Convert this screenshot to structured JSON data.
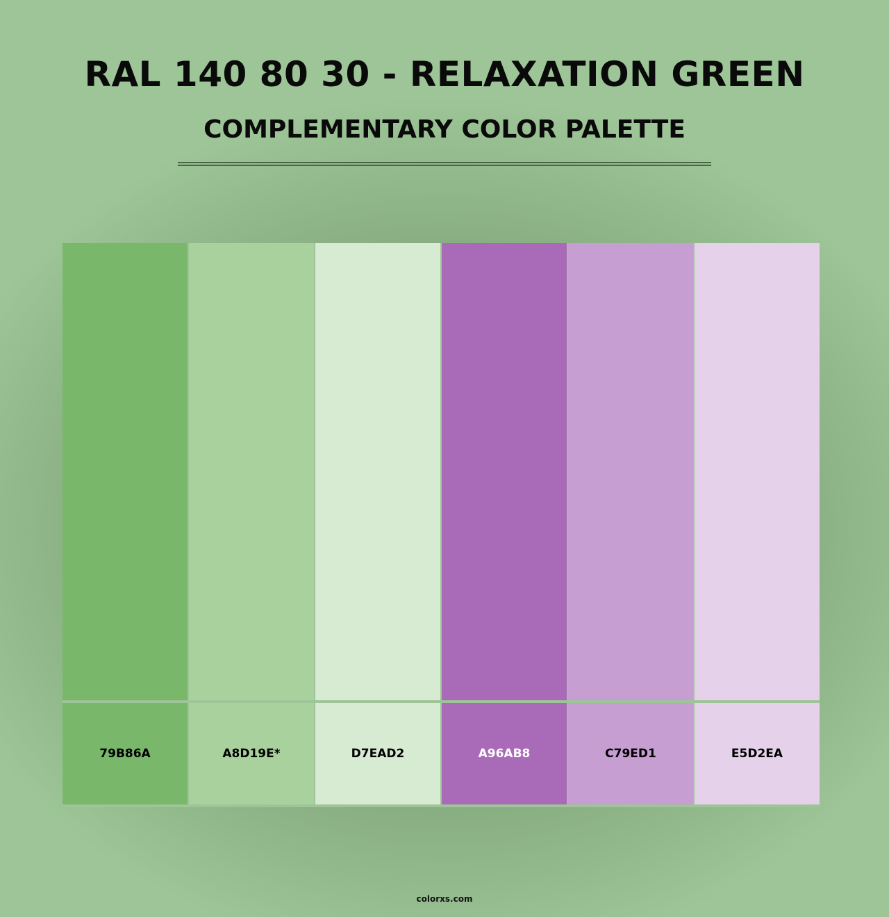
{
  "title": "RAL 140 80 30 - RELAXATION GREEN",
  "subtitle": "COMPLEMENTARY COLOR PALETTE",
  "swatches": [
    {
      "label": "79B86A",
      "color": "#79b86a",
      "text_color": "#000000"
    },
    {
      "label": "A8D19E*",
      "color": "#a8d19e",
      "text_color": "#000000"
    },
    {
      "label": "D7EAD2",
      "color": "#d7ead2",
      "text_color": "#000000"
    },
    {
      "label": "A96AB8",
      "color": "#a96ab8",
      "text_color": "#ffffff"
    },
    {
      "label": "C79ED1",
      "color": "#c79ed1",
      "text_color": "#000000"
    },
    {
      "label": "E5D2EA",
      "color": "#e5d2ea",
      "text_color": "#000000"
    }
  ],
  "footer": "colorxs.com"
}
